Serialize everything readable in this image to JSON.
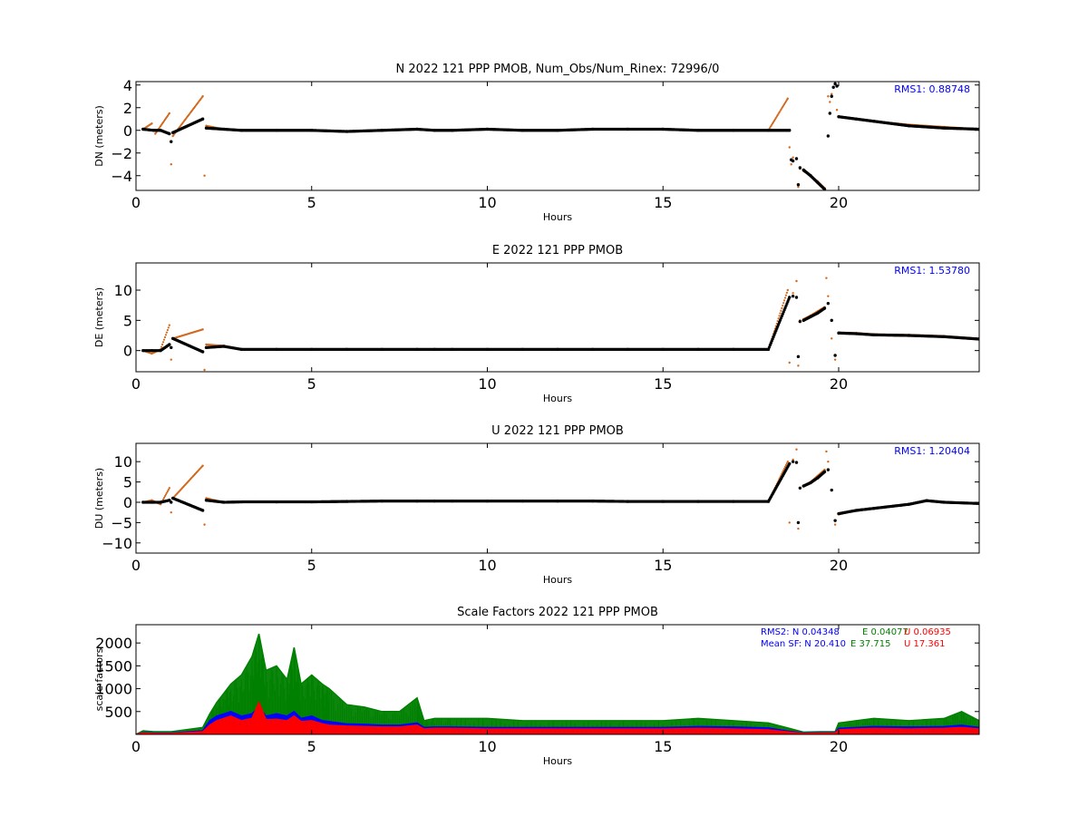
{
  "chart_data": [
    {
      "type": "scatter",
      "title": "N 2022 121 PPP  PMOB, Num_Obs/Num_Rinex: 72996/0",
      "xlabel": "Hours",
      "ylabel": "DN (meters)",
      "xlim": [
        0,
        24
      ],
      "ylim": [
        -5.3,
        4.3
      ],
      "yticks": [
        4,
        2,
        0,
        -2,
        -4
      ],
      "xticks": [
        0,
        5,
        10,
        15,
        20
      ],
      "annotation": "RMS1:  0.88748",
      "series": [
        {
          "color": "#d2691e",
          "role": "raw",
          "x": [
            0.2,
            0.45,
            0.55,
            0.95,
            1.0,
            1.05,
            1.9,
            1.95,
            2.0,
            2.5,
            3,
            4,
            5,
            6,
            7,
            8,
            8.5,
            9,
            10,
            11,
            12,
            13,
            14,
            15,
            16,
            17,
            18,
            18.55,
            18.6,
            18.65,
            18.7,
            18.8,
            18.85,
            18.9,
            19.0,
            19.2,
            19.4,
            19.6,
            19.7,
            19.75,
            19.8,
            19.9,
            19.95,
            20.0,
            20.5,
            21,
            22,
            23,
            24
          ],
          "y": [
            0.1,
            0.6,
            -0.3,
            1.5,
            -3.0,
            -0.5,
            3.0,
            -4.0,
            0.4,
            0.1,
            0.0,
            0.0,
            0.0,
            -0.1,
            0.0,
            0.1,
            0.0,
            0.0,
            0.1,
            0.0,
            0.0,
            0.1,
            0.1,
            0.1,
            0.0,
            0.0,
            0.0,
            2.8,
            -1.5,
            -3.0,
            -2.4,
            -2.5,
            -5.0,
            -3.4,
            -3.6,
            -4.0,
            -4.5,
            -5.1,
            3.0,
            2.5,
            3.2,
            4.2,
            1.8,
            1.2,
            1.0,
            0.8,
            0.5,
            0.3,
            0.1
          ]
        },
        {
          "color": "#000000",
          "role": "filtered",
          "x": [
            0.2,
            0.5,
            0.7,
            0.95,
            1.0,
            1.05,
            1.9,
            2.0,
            2.5,
            3,
            4,
            5,
            6,
            7,
            8,
            8.5,
            9,
            10,
            11,
            12,
            13,
            14,
            15,
            16,
            17,
            18,
            18.6,
            18.65,
            18.7,
            18.8,
            18.85,
            18.9,
            19.0,
            19.2,
            19.4,
            19.6,
            19.7,
            19.75,
            19.8,
            19.85,
            19.9,
            19.95,
            20.0,
            20.5,
            21,
            22,
            23,
            24
          ],
          "y": [
            0.1,
            0.0,
            0.0,
            -0.3,
            -1.0,
            -0.2,
            1.0,
            0.2,
            0.1,
            0.0,
            0.0,
            0.0,
            -0.1,
            0.0,
            0.1,
            0.0,
            0.0,
            0.1,
            0.0,
            0.0,
            0.1,
            0.1,
            0.1,
            0.0,
            0.0,
            0.0,
            0.0,
            -2.6,
            -2.7,
            -2.5,
            -4.8,
            -3.3,
            -3.5,
            -4.0,
            -4.6,
            -5.2,
            -0.5,
            1.5,
            3.0,
            3.8,
            4.1,
            3.9,
            1.2,
            1.0,
            0.8,
            0.4,
            0.2,
            0.1
          ]
        }
      ]
    },
    {
      "type": "scatter",
      "title": "E 2022 121 PPP  PMOB",
      "xlabel": "Hours",
      "ylabel": "DE (meters)",
      "xlim": [
        0,
        24
      ],
      "ylim": [
        -3.5,
        14.5
      ],
      "yticks": [
        10,
        5,
        0
      ],
      "xticks": [
        0,
        5,
        10,
        15,
        20
      ],
      "annotation": "RMS1:  1.53780",
      "series": [
        {
          "color": "#d2691e",
          "role": "raw",
          "x": [
            0.2,
            0.45,
            0.7,
            0.95,
            1.0,
            1.05,
            1.9,
            1.95,
            2.0,
            2.5,
            3,
            4,
            5,
            6,
            7,
            8,
            8.5,
            9,
            10,
            11,
            12,
            13,
            14,
            15,
            16,
            17,
            18,
            18.55,
            18.6,
            18.7,
            18.8,
            18.85,
            18.9,
            19.0,
            19.2,
            19.4,
            19.6,
            19.65,
            19.7,
            19.8,
            19.9,
            20.0,
            20.5,
            21,
            22,
            23,
            24
          ],
          "y": [
            0.0,
            -0.5,
            0.2,
            4.2,
            -1.5,
            2.0,
            3.5,
            -3.2,
            1.0,
            0.8,
            0.2,
            0.2,
            0.2,
            0.2,
            0.2,
            0.2,
            0.2,
            0.2,
            0.2,
            0.2,
            0.2,
            0.2,
            0.2,
            0.2,
            0.2,
            0.2,
            0.2,
            10.0,
            -2.0,
            9.5,
            11.5,
            -2.5,
            5.0,
            5.2,
            5.8,
            6.5,
            7.2,
            12.0,
            9.0,
            2.0,
            -1.5,
            3.0,
            2.9,
            2.7,
            2.6,
            2.4,
            2.0
          ]
        },
        {
          "color": "#000000",
          "role": "filtered",
          "x": [
            0.2,
            0.45,
            0.7,
            0.95,
            1.0,
            1.05,
            1.9,
            2.0,
            2.5,
            3,
            4,
            5,
            6,
            7,
            8,
            8.5,
            9,
            10,
            11,
            12,
            13,
            14,
            15,
            16,
            17,
            18,
            18.6,
            18.7,
            18.8,
            18.85,
            18.9,
            19.0,
            19.2,
            19.4,
            19.6,
            19.7,
            19.8,
            19.9,
            20.0,
            20.5,
            21,
            22,
            23,
            24
          ],
          "y": [
            0.0,
            0.0,
            0.0,
            1.0,
            0.5,
            2.0,
            -0.2,
            0.5,
            0.7,
            0.2,
            0.2,
            0.2,
            0.2,
            0.2,
            0.2,
            0.2,
            0.2,
            0.2,
            0.2,
            0.2,
            0.2,
            0.2,
            0.2,
            0.2,
            0.2,
            0.2,
            8.8,
            9.0,
            8.8,
            -1.0,
            4.8,
            5.0,
            5.6,
            6.2,
            7.0,
            7.8,
            5.0,
            -0.8,
            2.9,
            2.8,
            2.6,
            2.5,
            2.3,
            1.9
          ]
        }
      ]
    },
    {
      "type": "scatter",
      "title": "U 2022 121 PPP  PMOB",
      "xlabel": "Hours",
      "ylabel": "DU (meters)",
      "xlim": [
        0,
        24
      ],
      "ylim": [
        -12.5,
        14.5
      ],
      "yticks": [
        10,
        5,
        0,
        -5,
        -10
      ],
      "xticks": [
        0,
        5,
        10,
        15,
        20
      ],
      "annotation": "RMS1:  1.20404",
      "series": [
        {
          "color": "#d2691e",
          "role": "raw",
          "x": [
            0.2,
            0.45,
            0.7,
            0.95,
            1.0,
            1.05,
            1.9,
            1.95,
            2.0,
            2.5,
            3,
            4,
            5,
            6,
            7,
            8,
            8.5,
            9,
            10,
            11,
            12,
            13,
            14,
            15,
            16,
            17,
            18,
            18.55,
            18.6,
            18.7,
            18.8,
            18.85,
            18.9,
            19.0,
            19.2,
            19.4,
            19.6,
            19.65,
            19.7,
            19.8,
            19.9,
            20.0,
            20.5,
            21,
            22,
            22.5,
            23,
            24
          ],
          "y": [
            0.0,
            0.5,
            -0.5,
            3.5,
            -2.5,
            1.0,
            9.0,
            -5.5,
            1.0,
            0.0,
            0.0,
            0.1,
            0.1,
            0.3,
            0.3,
            0.3,
            0.3,
            0.3,
            0.3,
            0.4,
            0.3,
            0.3,
            0.2,
            0.2,
            0.2,
            0.2,
            0.2,
            10.0,
            -5.0,
            10.5,
            13.0,
            -6.5,
            3.5,
            4.0,
            5.0,
            6.5,
            8.0,
            12.5,
            10.0,
            3.0,
            -5.5,
            -3.0,
            -2.0,
            -1.5,
            -0.5,
            0.5,
            0.0,
            -0.3
          ]
        },
        {
          "color": "#000000",
          "role": "filtered",
          "x": [
            0.2,
            0.45,
            0.7,
            0.95,
            1.0,
            1.05,
            1.9,
            2.0,
            2.5,
            3,
            4,
            5,
            6,
            7,
            8,
            8.5,
            9,
            10,
            11,
            12,
            13,
            14,
            15,
            16,
            17,
            18,
            18.6,
            18.7,
            18.8,
            18.85,
            18.9,
            19.0,
            19.2,
            19.4,
            19.6,
            19.7,
            19.8,
            19.9,
            20.0,
            20.5,
            21,
            22,
            22.5,
            23,
            24
          ],
          "y": [
            0.0,
            0.0,
            0.0,
            0.5,
            0.0,
            1.0,
            -2.0,
            0.5,
            0.0,
            0.1,
            0.1,
            0.1,
            0.2,
            0.3,
            0.3,
            0.3,
            0.3,
            0.3,
            0.3,
            0.3,
            0.3,
            0.2,
            0.2,
            0.2,
            0.2,
            0.2,
            9.5,
            10.0,
            9.8,
            -5.0,
            3.5,
            4.0,
            4.8,
            6.0,
            7.5,
            8.0,
            3.0,
            -4.5,
            -2.8,
            -2.0,
            -1.5,
            -0.5,
            0.4,
            0.0,
            -0.3
          ]
        }
      ]
    },
    {
      "type": "area",
      "title": "Scale Factors 2022 121 PPP  PMOB",
      "xlabel": "Hours",
      "ylabel": "scale factors",
      "xlim": [
        0,
        24
      ],
      "ylim": [
        0,
        2400
      ],
      "yticks": [
        2000,
        1500,
        1000,
        500
      ],
      "xticks": [
        0,
        5,
        10,
        15,
        20
      ],
      "rms2": {
        "label": "RMS2: N  0.04348",
        "e": "E  0.04077",
        "u": "U  0.06935"
      },
      "mean_sf": {
        "label": "Mean SF: N  20.410",
        "e": "E  37.715",
        "u": "U  17.361"
      },
      "x": [
        0,
        0.2,
        0.5,
        1.0,
        1.9,
        2.1,
        2.3,
        2.5,
        2.7,
        3.0,
        3.3,
        3.5,
        3.7,
        4.0,
        4.3,
        4.5,
        4.7,
        5.0,
        5.3,
        5.5,
        6.0,
        6.5,
        7.0,
        7.5,
        8.0,
        8.2,
        8.5,
        9.0,
        10.0,
        11.0,
        12.0,
        13.0,
        14.0,
        15.0,
        16.0,
        17.0,
        18.0,
        18.5,
        19.0,
        19.5,
        19.9,
        20.0,
        20.5,
        21.0,
        22.0,
        23.0,
        23.5,
        24.0
      ],
      "series": [
        {
          "name": "E",
          "color": "#008000",
          "max": [
            0,
            80,
            60,
            60,
            150,
            450,
            700,
            900,
            1100,
            1300,
            1700,
            2200,
            1400,
            1500,
            1200,
            1900,
            1100,
            1300,
            1100,
            1000,
            650,
            600,
            500,
            500,
            800,
            300,
            350,
            350,
            350,
            300,
            300,
            300,
            300,
            300,
            350,
            300,
            250,
            150,
            50,
            60,
            60,
            250,
            300,
            350,
            300,
            350,
            500,
            300
          ]
        },
        {
          "name": "N",
          "color": "#0000ff",
          "max": [
            0,
            40,
            30,
            30,
            80,
            300,
            400,
            450,
            500,
            400,
            450,
            600,
            400,
            450,
            400,
            500,
            350,
            400,
            300,
            280,
            230,
            220,
            200,
            200,
            250,
            150,
            160,
            160,
            150,
            150,
            150,
            150,
            150,
            150,
            170,
            160,
            140,
            80,
            30,
            40,
            40,
            130,
            150,
            170,
            160,
            170,
            200,
            150
          ]
        },
        {
          "name": "U",
          "color": "#ff0000",
          "max": [
            0,
            30,
            20,
            20,
            60,
            200,
            300,
            350,
            400,
            300,
            350,
            700,
            320,
            330,
            300,
            400,
            280,
            300,
            230,
            200,
            180,
            170,
            160,
            160,
            200,
            120,
            130,
            130,
            120,
            120,
            120,
            120,
            120,
            120,
            130,
            120,
            100,
            60,
            20,
            30,
            30,
            100,
            120,
            130,
            120,
            130,
            150,
            120
          ]
        }
      ]
    }
  ]
}
